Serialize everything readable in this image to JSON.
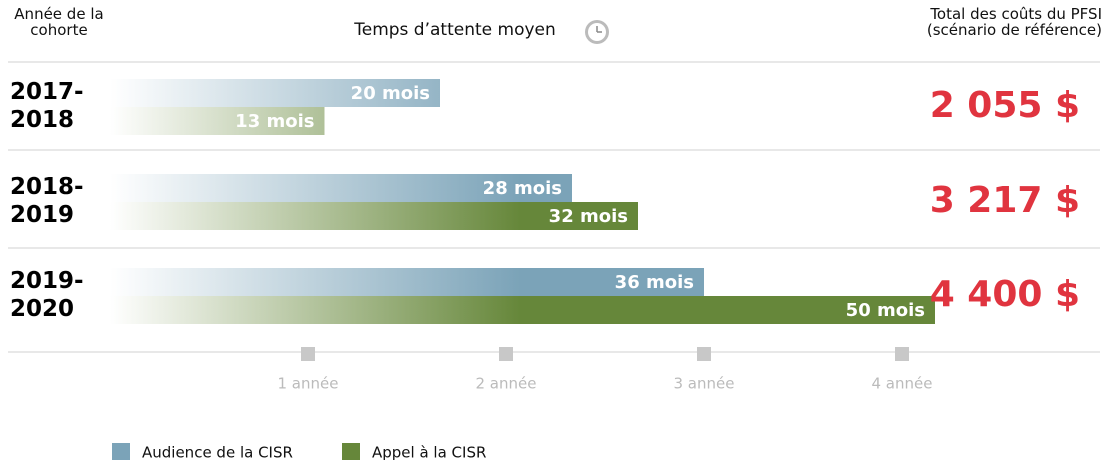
{
  "chart_data": {
    "type": "bar",
    "orientation": "horizontal",
    "cohort_header": "Année de la cohorte",
    "title": "Temps d’attente  moyen",
    "cost_header": "Total des coûts du PFSI (scénario de référence)",
    "categories": [
      "2017-2018",
      "2018-2019",
      "2019-2020"
    ],
    "series": [
      {
        "name": "Audience de la CISR",
        "color": "#7ba3b8",
        "values": [
          20,
          28,
          36
        ],
        "value_labels": [
          "20 mois",
          "28 mois",
          "36 mois"
        ]
      },
      {
        "name": "Appel à la CISR",
        "color": "#66873a",
        "values": [
          13,
          32,
          50
        ],
        "value_labels": [
          "13 mois",
          "32 mois",
          "50 mois"
        ]
      }
    ],
    "costs": [
      "2 055 $",
      "3 217 $",
      "4 400 $"
    ],
    "cost_color": "#e0343f",
    "xlim": [
      0,
      50
    ],
    "xticks": [
      {
        "value": 12,
        "label": "1 année"
      },
      {
        "value": 24,
        "label": "2 année"
      },
      {
        "value": 36,
        "label": "3 année"
      },
      {
        "value": 48,
        "label": "4 année"
      }
    ]
  }
}
